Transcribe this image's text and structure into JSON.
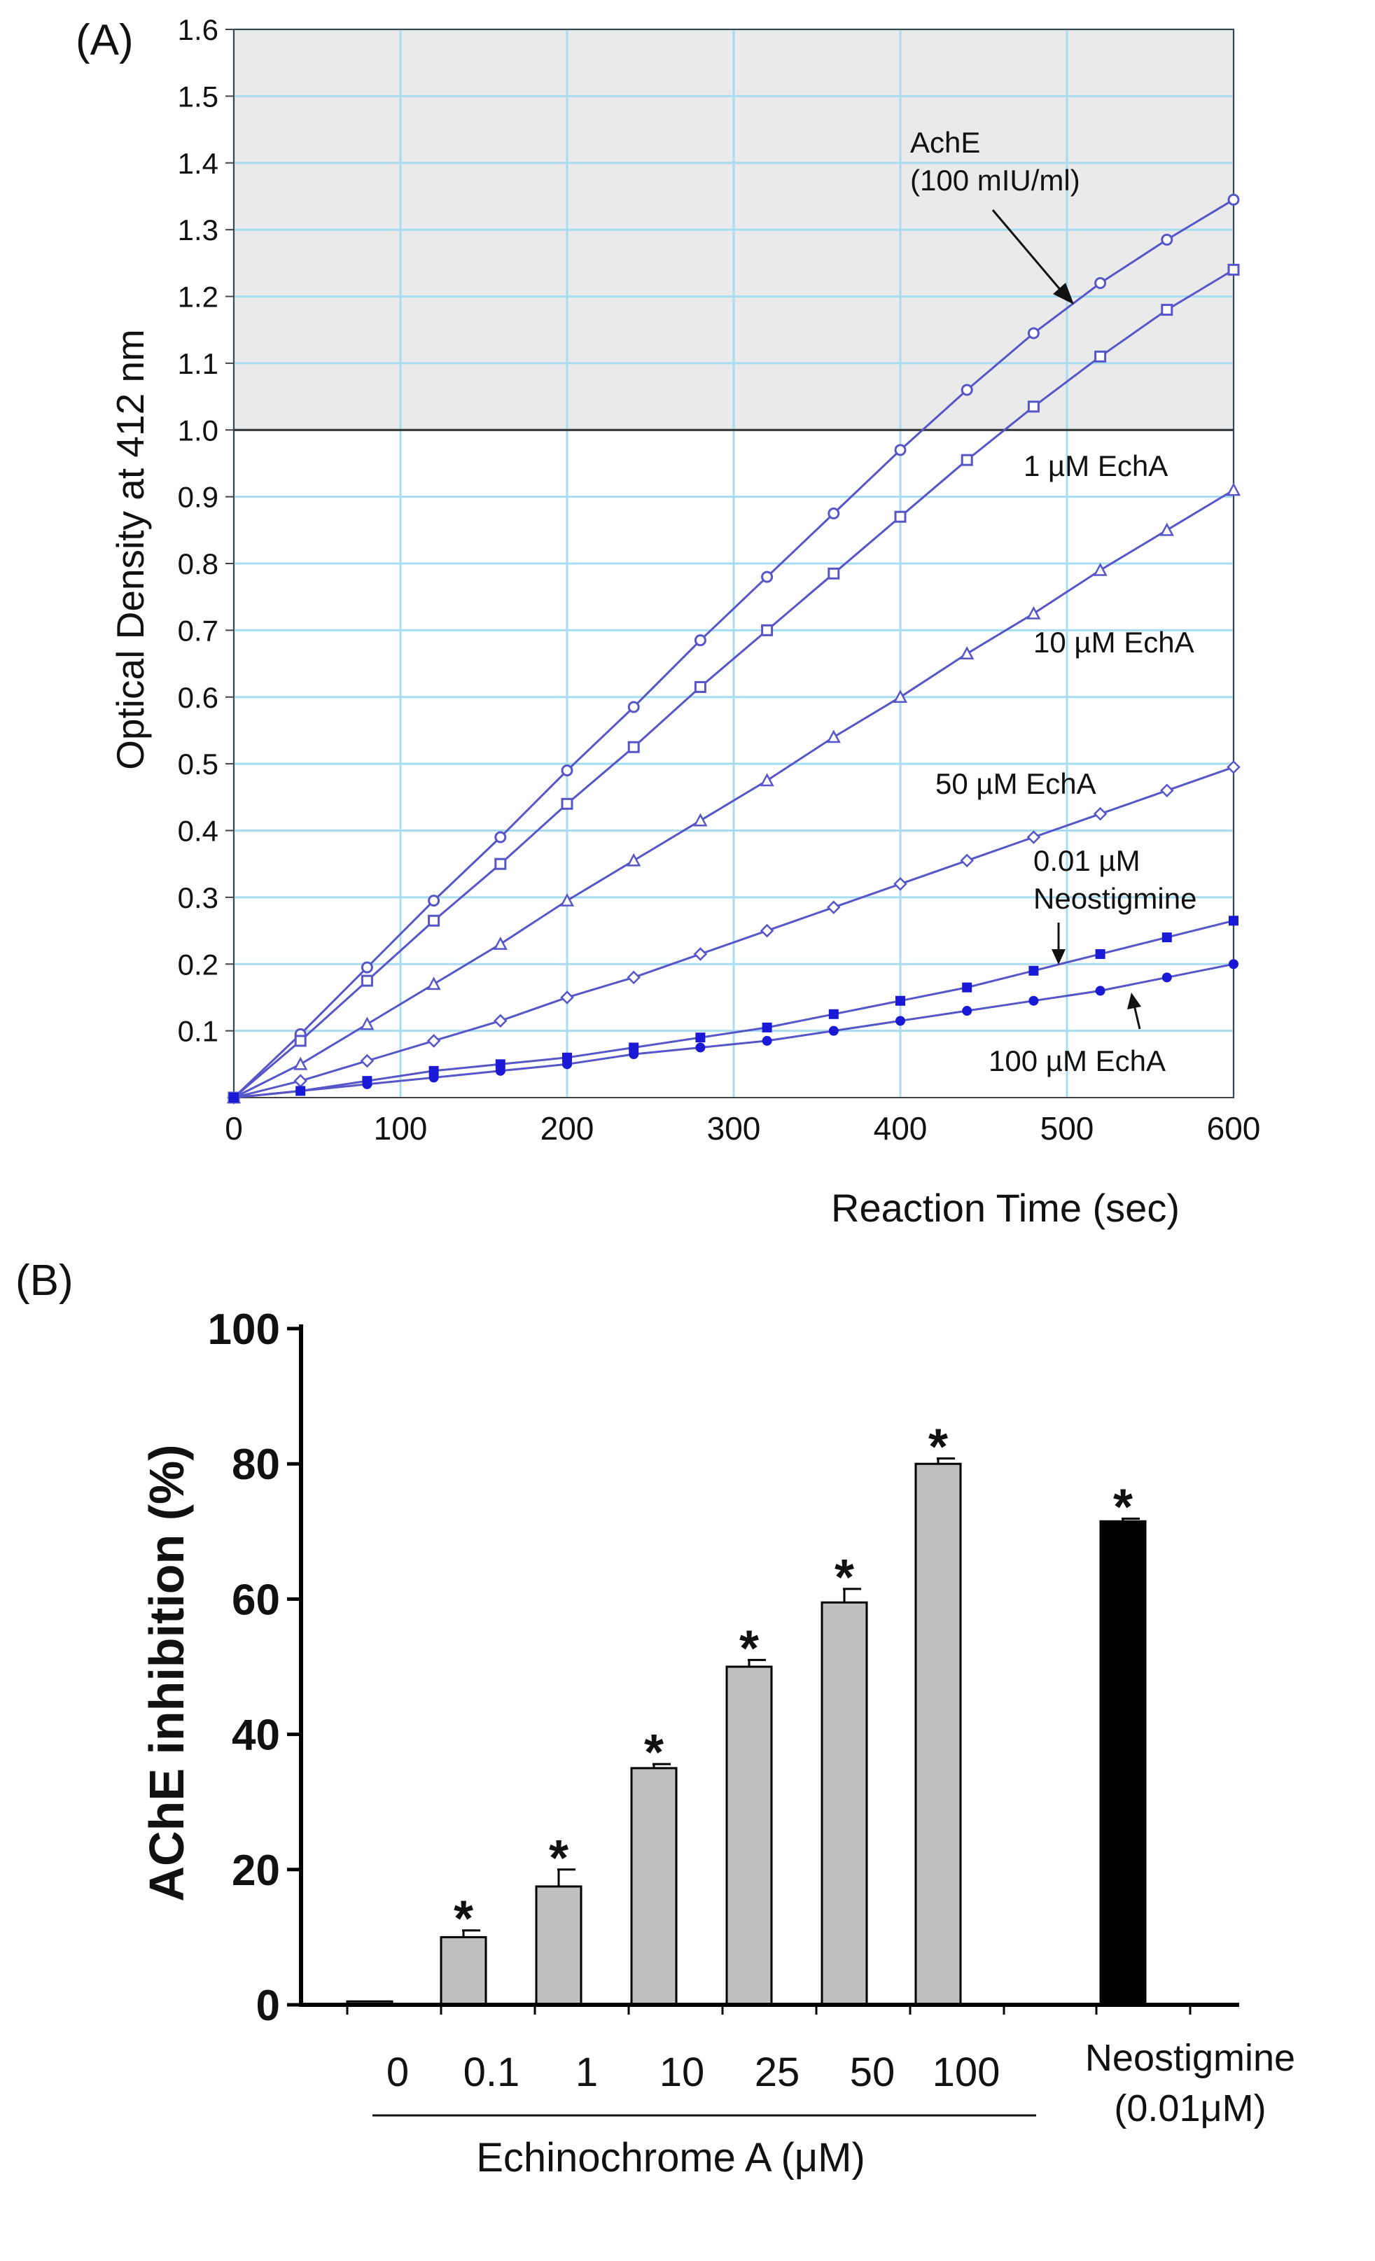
{
  "chart_data": [
    {
      "panel": "(A)",
      "type": "line",
      "xlabel": "Reaction Time (sec)",
      "ylabel": "Optical Density at  412 nm",
      "xlim": [
        0,
        600
      ],
      "ylim": [
        0,
        1.6
      ],
      "x_ticks": [
        "0",
        "100",
        "200",
        "300",
        "400",
        "500",
        "600"
      ],
      "y_ticks": [
        "0.1",
        "0.2",
        "0.3",
        "0.4",
        "0.5",
        "0.6",
        "0.7",
        "0.8",
        "0.9",
        "1.0",
        "1.1",
        "1.2",
        "1.3",
        "1.4",
        "1.5",
        "1.6"
      ],
      "shaded_above": 1.0,
      "grid": true,
      "colors": {
        "line": "#5656c8",
        "grid": "#a8dcf0",
        "shade": "#eaeaea"
      },
      "x": [
        0,
        40,
        80,
        120,
        160,
        200,
        240,
        280,
        320,
        360,
        400,
        440,
        480,
        520,
        560,
        600
      ],
      "series": [
        {
          "name": "AchE (100 mIU/ml)",
          "marker": "circle-open",
          "values": [
            0,
            0.095,
            0.195,
            0.295,
            0.39,
            0.49,
            0.585,
            0.685,
            0.78,
            0.875,
            0.97,
            1.06,
            1.145,
            1.22,
            1.285,
            1.345
          ]
        },
        {
          "name": "1 µM EchA",
          "marker": "square-open",
          "values": [
            0,
            0.085,
            0.175,
            0.265,
            0.35,
            0.44,
            0.525,
            0.615,
            0.7,
            0.785,
            0.87,
            0.955,
            1.035,
            1.11,
            1.18,
            1.24
          ]
        },
        {
          "name": "10 µM EchA",
          "marker": "triangle-open",
          "values": [
            0,
            0.05,
            0.11,
            0.17,
            0.23,
            0.295,
            0.355,
            0.415,
            0.475,
            0.54,
            0.6,
            0.665,
            0.725,
            0.79,
            0.85,
            0.91
          ]
        },
        {
          "name": "50 µM EchA",
          "marker": "diamond-open",
          "values": [
            0,
            0.025,
            0.055,
            0.085,
            0.115,
            0.15,
            0.18,
            0.215,
            0.25,
            0.285,
            0.32,
            0.355,
            0.39,
            0.425,
            0.46,
            0.495
          ]
        },
        {
          "name": "0.01 µM Neostigmine",
          "marker": "square-filled",
          "values": [
            0,
            0.01,
            0.025,
            0.04,
            0.05,
            0.06,
            0.075,
            0.09,
            0.105,
            0.125,
            0.145,
            0.165,
            0.19,
            0.215,
            0.24,
            0.265
          ]
        },
        {
          "name": "100 µM EchA",
          "marker": "circle-filled",
          "values": [
            0,
            0.01,
            0.02,
            0.03,
            0.04,
            0.05,
            0.065,
            0.075,
            0.085,
            0.1,
            0.115,
            0.13,
            0.145,
            0.16,
            0.18,
            0.2
          ]
        }
      ],
      "annotations": {
        "ache_line1": "AchE",
        "ache_line2": "(100 mIU/ml)",
        "echa1": "1 µM EchA",
        "echa10": "10 µM EchA",
        "echa50": "50 µM EchA",
        "neo_line1": "0.01 µM",
        "neo_line2": "Neostigmine",
        "echa100": "100 µM EchA"
      }
    },
    {
      "panel": "(B)",
      "type": "bar",
      "ylabel": "AChE inhibition (%)",
      "ylim": [
        0,
        100
      ],
      "y_ticks": [
        "0",
        "20",
        "40",
        "60",
        "80",
        "100"
      ],
      "categories": [
        "0",
        "0.1",
        "1",
        "10",
        "25",
        "50",
        "100",
        "Neostigmine (0.01μM)"
      ],
      "values": [
        0.5,
        10,
        17.5,
        35,
        50,
        59.5,
        80,
        71.5
      ],
      "errors": [
        0,
        1,
        2.5,
        0.6,
        1,
        2,
        0.8,
        0.4
      ],
      "significance": [
        "",
        "*",
        "*",
        "*",
        "*",
        "*",
        "*",
        "*"
      ],
      "bar_colors": [
        "#c0c0c0",
        "#c0c0c0",
        "#c0c0c0",
        "#c0c0c0",
        "#c0c0c0",
        "#c0c0c0",
        "#c0c0c0",
        "#000000"
      ],
      "group_label": "Echinochrome A (μM)",
      "neo_label_line1": "Neostigmine",
      "neo_label_line2": "(0.01μM)"
    }
  ]
}
